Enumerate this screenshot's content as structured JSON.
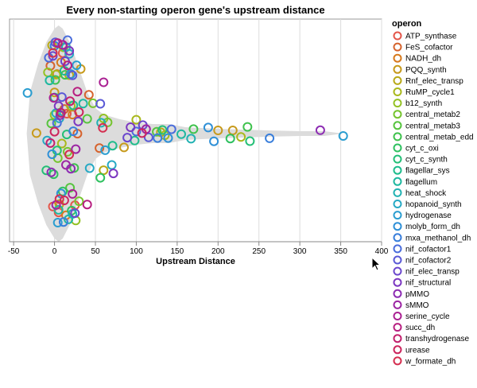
{
  "chart_data": {
    "type": "scatter",
    "title": "Every non-starting operon gene's upstream distance",
    "xlabel": "Upstream Distance",
    "ylabel": "",
    "xlim": [
      -55,
      400
    ],
    "xticks": [
      -50,
      0,
      50,
      100,
      150,
      200,
      250,
      300,
      350,
      400
    ],
    "grid": true,
    "legend_title": "operon",
    "legend_position": "right",
    "series": [
      {
        "name": "ATP_synthase",
        "color": "#e4564a",
        "x": [
          -2,
          5,
          10,
          15,
          25
        ]
      },
      {
        "name": "FeS_cofactor",
        "color": "#d6632d",
        "x": [
          -5,
          12,
          28,
          55,
          42
        ]
      },
      {
        "name": "NADH_dh",
        "color": "#d77a1e",
        "x": [
          8,
          14,
          22,
          3
        ]
      },
      {
        "name": "PQQ_synth",
        "color": "#c79a1c",
        "x": [
          -22,
          0,
          32,
          85,
          218,
          200
        ]
      },
      {
        "name": "Rnf_elec_transp",
        "color": "#b8a918",
        "x": [
          -3,
          6,
          18,
          60,
          130
        ]
      },
      {
        "name": "RuMP_cycle1",
        "color": "#a9b81c",
        "x": [
          2,
          9,
          20,
          228,
          135,
          100
        ]
      },
      {
        "name": "b12_synth",
        "color": "#93c123",
        "x": [
          -8,
          0,
          11,
          26,
          60
        ]
      },
      {
        "name": "central_metab2",
        "color": "#76c42f",
        "x": [
          4,
          16,
          30,
          47,
          65
        ]
      },
      {
        "name": "central_metab3",
        "color": "#57c43f",
        "x": [
          -4,
          7,
          19,
          40,
          125
        ]
      },
      {
        "name": "central_metab_edd",
        "color": "#3fc24d",
        "x": [
          1,
          13,
          24,
          236,
          170
        ]
      },
      {
        "name": "cyt_c_oxi",
        "color": "#2fc160",
        "x": [
          -1,
          10,
          21,
          56,
          215
        ]
      },
      {
        "name": "cyt_c_synth",
        "color": "#23bf76",
        "x": [
          -10,
          3,
          15,
          239,
          132
        ]
      },
      {
        "name": "flagellar_sys",
        "color": "#1fbc8c",
        "x": [
          0,
          12,
          23,
          71,
          98
        ]
      },
      {
        "name": "flagellum",
        "color": "#1fb8a0",
        "x": [
          -6,
          5,
          17,
          35,
          155
        ]
      },
      {
        "name": "heat_shock",
        "color": "#22b2b3",
        "x": [
          2,
          14,
          22,
          57,
          167
        ]
      },
      {
        "name": "hopanoid_synth",
        "color": "#26a9c4",
        "x": [
          -9,
          6,
          18,
          43,
          70
        ]
      },
      {
        "name": "hydrogenase",
        "color": "#2a9dd0",
        "x": [
          -33,
          4,
          27,
          62,
          353
        ]
      },
      {
        "name": "molyb_form_dh",
        "color": "#2f90d7",
        "x": [
          -3,
          8,
          20,
          139,
          188,
          195
        ]
      },
      {
        "name": "mxa_methanol_dh",
        "color": "#3a7fdb",
        "x": [
          0,
          11,
          23,
          126,
          263
        ]
      },
      {
        "name": "nif_cofactor1",
        "color": "#4a6ddc",
        "x": [
          -7,
          3,
          16,
          143,
          100
        ]
      },
      {
        "name": "nif_cofactor2",
        "color": "#5a59d6",
        "x": [
          1,
          9,
          22,
          56,
          115
        ]
      },
      {
        "name": "nif_elec_transp",
        "color": "#6b47cd",
        "x": [
          -2,
          13,
          25,
          89,
          108
        ]
      },
      {
        "name": "nif_structural",
        "color": "#7c38c1",
        "x": [
          5,
          18,
          29,
          93,
          72
        ]
      },
      {
        "name": "pMMO",
        "color": "#8d2db3",
        "x": [
          -4,
          7,
          20,
          325
        ]
      },
      {
        "name": "sMMO",
        "color": "#9c25a3",
        "x": [
          2,
          14,
          26,
          112
        ]
      },
      {
        "name": "serine_cycle",
        "color": "#aa2092",
        "x": [
          -1,
          10,
          22,
          60
        ]
      },
      {
        "name": "succ_dh",
        "color": "#b71f80",
        "x": [
          4,
          16,
          28,
          40
        ]
      },
      {
        "name": "transhydrogenase",
        "color": "#c2216e",
        "x": [
          -5,
          8,
          19
        ]
      },
      {
        "name": "urease",
        "color": "#cc265e",
        "x": [
          0,
          12,
          107,
          30
        ]
      },
      {
        "name": "w_formate_dh",
        "color": "#d42f50",
        "x": [
          -2,
          6,
          18,
          59
        ]
      }
    ]
  }
}
